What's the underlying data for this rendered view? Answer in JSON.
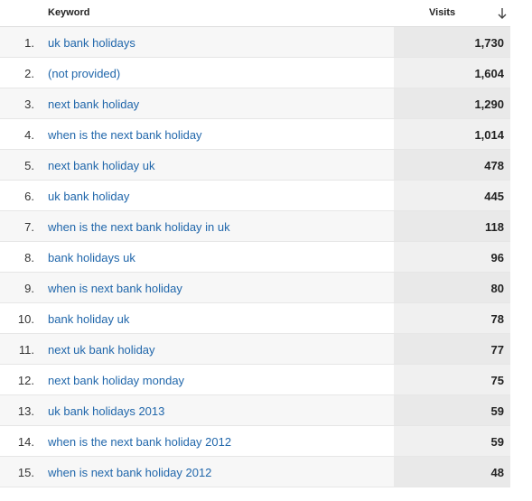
{
  "table": {
    "header": [
      "Keyword",
      "Visits"
    ],
    "rows": [
      [
        "1.",
        "uk bank holidays",
        "1,730"
      ],
      [
        "2.",
        "(not provided)",
        "1,604"
      ],
      [
        "3.",
        "next bank holiday",
        "1,290"
      ],
      [
        "4.",
        "when is the next bank holiday",
        "1,014"
      ],
      [
        "5.",
        "next bank holiday uk",
        "478"
      ],
      [
        "6.",
        "uk bank holiday",
        "445"
      ],
      [
        "7.",
        "when is the next bank holiday in uk",
        "118"
      ],
      [
        "8.",
        "bank holidays uk",
        "96"
      ],
      [
        "9.",
        "when is next bank holiday",
        "80"
      ],
      [
        "10.",
        "bank holiday uk",
        "78"
      ],
      [
        "11.",
        "next uk bank holiday",
        "77"
      ],
      [
        "12.",
        "next bank holiday monday",
        "75"
      ],
      [
        "13.",
        "uk bank holidays 2013",
        "59"
      ],
      [
        "14.",
        "when is the next bank holiday 2012",
        "59"
      ],
      [
        "15.",
        "when is next bank holiday 2012",
        "48"
      ]
    ]
  }
}
